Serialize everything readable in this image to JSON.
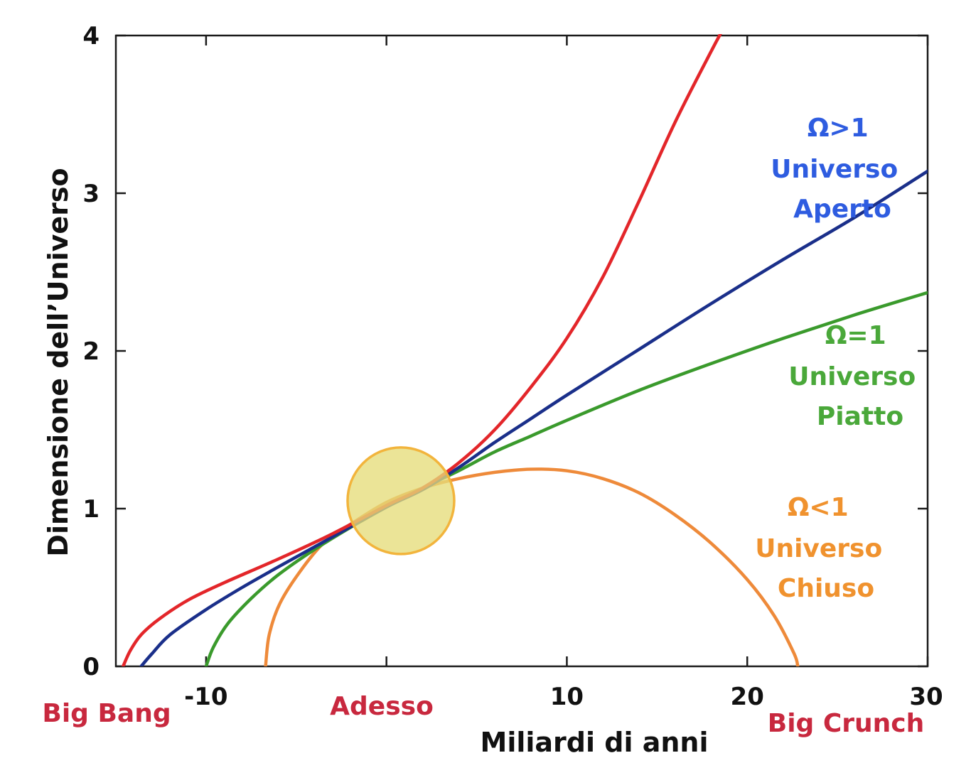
{
  "chart_data": {
    "type": "line",
    "title": "",
    "xlabel": "Miliardi di anni",
    "ylabel": "Dimensione dell’Universo",
    "xlim": [
      -15,
      30
    ],
    "ylim": [
      0,
      4
    ],
    "x_ticks": [
      -10,
      0,
      10,
      20,
      30
    ],
    "x_tick_labels": [
      "-10",
      "",
      "10",
      "20",
      "30"
    ],
    "y_ticks": [
      0,
      1,
      2,
      3,
      4
    ],
    "y_tick_labels": [
      "0",
      "1",
      "2",
      "3",
      "4"
    ],
    "grid": false,
    "now_marker": {
      "x": 0.8,
      "y": 1.05
    },
    "series": [
      {
        "key": "red",
        "color": "#e3262a",
        "points": [
          [
            -14.6,
            0
          ],
          [
            -14.2,
            0.1
          ],
          [
            -13.6,
            0.2
          ],
          [
            -12.6,
            0.3
          ],
          [
            -11.0,
            0.42
          ],
          [
            -9,
            0.53
          ],
          [
            -6,
            0.68
          ],
          [
            -3,
            0.84
          ],
          [
            0,
            1.02
          ],
          [
            2,
            1.13
          ],
          [
            4,
            1.29
          ],
          [
            6,
            1.5
          ],
          [
            8,
            1.77
          ],
          [
            10,
            2.08
          ],
          [
            12,
            2.47
          ],
          [
            14,
            2.95
          ],
          [
            16,
            3.45
          ],
          [
            18,
            3.9
          ],
          [
            18.8,
            4.07
          ]
        ]
      },
      {
        "key": "blue",
        "color": "#1a2f8a",
        "points": [
          [
            -13.6,
            0
          ],
          [
            -13.0,
            0.08
          ],
          [
            -12,
            0.2
          ],
          [
            -10,
            0.36
          ],
          [
            -8,
            0.5
          ],
          [
            -6,
            0.63
          ],
          [
            -3,
            0.82
          ],
          [
            0,
            1.01
          ],
          [
            2,
            1.12
          ],
          [
            4,
            1.26
          ],
          [
            6,
            1.42
          ],
          [
            8,
            1.57
          ],
          [
            10,
            1.72
          ],
          [
            14,
            2.01
          ],
          [
            18,
            2.3
          ],
          [
            22,
            2.58
          ],
          [
            26,
            2.85
          ],
          [
            30,
            3.14
          ]
        ]
      },
      {
        "key": "green",
        "color": "#3a9a2c",
        "points": [
          [
            -10.0,
            0
          ],
          [
            -9.6,
            0.12
          ],
          [
            -8.8,
            0.27
          ],
          [
            -7.5,
            0.43
          ],
          [
            -6,
            0.58
          ],
          [
            -4,
            0.74
          ],
          [
            -2,
            0.88
          ],
          [
            0,
            1.01
          ],
          [
            2,
            1.13
          ],
          [
            4,
            1.24
          ],
          [
            6,
            1.36
          ],
          [
            8,
            1.46
          ],
          [
            10,
            1.56
          ],
          [
            14,
            1.75
          ],
          [
            18,
            1.92
          ],
          [
            22,
            2.08
          ],
          [
            26,
            2.23
          ],
          [
            30,
            2.37
          ]
        ]
      },
      {
        "key": "orange",
        "color": "#ee8a3a",
        "points": [
          [
            -6.7,
            0
          ],
          [
            -6.5,
            0.2
          ],
          [
            -5.9,
            0.4
          ],
          [
            -4.8,
            0.6
          ],
          [
            -3.5,
            0.78
          ],
          [
            -2,
            0.9
          ],
          [
            0,
            1.04
          ],
          [
            2,
            1.13
          ],
          [
            4,
            1.19
          ],
          [
            6,
            1.23
          ],
          [
            8,
            1.25
          ],
          [
            10,
            1.24
          ],
          [
            12,
            1.19
          ],
          [
            14,
            1.1
          ],
          [
            16,
            0.96
          ],
          [
            18,
            0.78
          ],
          [
            20,
            0.55
          ],
          [
            21.5,
            0.32
          ],
          [
            22.6,
            0.08
          ],
          [
            22.8,
            0
          ]
        ]
      }
    ],
    "annotations": [
      {
        "lines": [
          "Ω>1",
          "Universo",
          "Aperto"
        ],
        "color": "#2e5ce0"
      },
      {
        "lines": [
          "Ω=1",
          "Universo",
          "Piatto"
        ],
        "color": "#4aa83a"
      },
      {
        "lines": [
          "Ω<1",
          "Universo",
          "Chiuso"
        ],
        "color": "#f0922e"
      }
    ],
    "bottom_labels": [
      {
        "text": "Big Bang",
        "color": "#c8283e"
      },
      {
        "text": "Adesso",
        "color": "#c8283e"
      },
      {
        "text": "Big Crunch",
        "color": "#c8283e"
      }
    ]
  }
}
